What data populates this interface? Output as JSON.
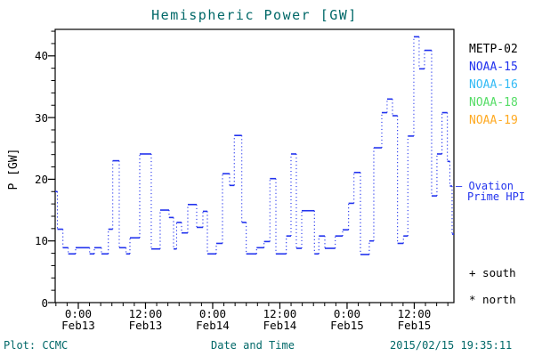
{
  "title": "Hemispheric Power [GW]",
  "colors": {
    "teal": "#006868",
    "blue": "#2233ee",
    "axis": "#000000",
    "background": "#ffffff"
  },
  "legend": {
    "satellites": [
      {
        "label": "METP-02",
        "color": "#000000"
      },
      {
        "label": "NOAA-15",
        "color": "#2233ee"
      },
      {
        "label": "NOAA-16",
        "color": "#33bbf5"
      },
      {
        "label": "NOAA-18",
        "color": "#55dd66"
      },
      {
        "label": "NOAA-19",
        "color": "#ffaa22"
      }
    ],
    "ovation_line1": "— Ovation",
    "ovation_line2": "Prime HPI",
    "south": "+ south",
    "north": "* north"
  },
  "footer": {
    "left": "Plot: CCMC",
    "right": "2015/02/15 19:35:11"
  },
  "chart_data": {
    "type": "line",
    "subtype": "step-stair with dotted risers",
    "title": "Hemispheric Power [GW]",
    "xlabel": "Date and Time",
    "ylabel": "P [GW]",
    "ylim": [
      0,
      44.3
    ],
    "y_ticks": [
      0,
      10,
      20,
      30,
      40
    ],
    "y_minor_step": 2,
    "xlim_hours_from_feb13_0000": [
      -4.13,
      67.08
    ],
    "x_major_ticks_hours": [
      0,
      12,
      24,
      36,
      48,
      60
    ],
    "x_minor_step_hours": 2,
    "x_tick_labels": [
      {
        "time": "0:00",
        "date": "Feb13"
      },
      {
        "time": "12:00",
        "date": "Feb13"
      },
      {
        "time": "0:00",
        "date": "Feb14"
      },
      {
        "time": "12:00",
        "date": "Feb14"
      },
      {
        "time": "0:00",
        "date": "Feb15"
      },
      {
        "time": "12:00",
        "date": "Feb15"
      }
    ],
    "grid": false,
    "legend_position": "right-outside",
    "series": [
      {
        "name": "Ovation Prime HPI",
        "color": "#2233ee",
        "marker_note": "+ south / * north",
        "steps_t0_t1_gw": [
          [
            -4.13,
            -3.73,
            18.0
          ],
          [
            -3.73,
            -2.75,
            11.9
          ],
          [
            -2.75,
            -1.8,
            8.9
          ],
          [
            -1.8,
            -0.48,
            7.9
          ],
          [
            -0.48,
            2.02,
            8.9
          ],
          [
            2.02,
            2.86,
            7.9
          ],
          [
            2.86,
            4.13,
            8.9
          ],
          [
            4.13,
            5.36,
            7.9
          ],
          [
            5.36,
            6.15,
            11.9
          ],
          [
            6.15,
            7.31,
            23.0
          ],
          [
            7.31,
            8.53,
            8.9
          ],
          [
            8.53,
            9.22,
            7.9
          ],
          [
            9.22,
            10.97,
            10.5
          ],
          [
            10.97,
            13.03,
            24.1
          ],
          [
            13.03,
            14.62,
            8.7
          ],
          [
            14.62,
            16.21,
            15.0
          ],
          [
            16.21,
            17.01,
            13.8
          ],
          [
            17.01,
            17.56,
            8.7
          ],
          [
            17.56,
            18.44,
            13.0
          ],
          [
            18.44,
            19.55,
            11.3
          ],
          [
            19.55,
            21.14,
            15.9
          ],
          [
            21.14,
            22.25,
            12.2
          ],
          [
            22.25,
            23.05,
            14.8
          ],
          [
            23.05,
            24.64,
            7.9
          ],
          [
            24.64,
            25.75,
            9.6
          ],
          [
            25.75,
            27.02,
            20.9
          ],
          [
            27.02,
            27.86,
            19.0
          ],
          [
            27.86,
            29.2,
            27.1
          ],
          [
            29.2,
            29.99,
            13.0
          ],
          [
            29.99,
            31.84,
            7.9
          ],
          [
            31.84,
            33.17,
            8.9
          ],
          [
            33.17,
            34.22,
            9.9
          ],
          [
            34.22,
            35.29,
            20.1
          ],
          [
            35.29,
            37.15,
            7.9
          ],
          [
            37.15,
            37.99,
            10.8
          ],
          [
            37.99,
            38.94,
            24.1
          ],
          [
            38.94,
            39.9,
            8.8
          ],
          [
            39.9,
            42.17,
            14.9
          ],
          [
            42.17,
            42.96,
            7.9
          ],
          [
            42.96,
            44.03,
            10.8
          ],
          [
            44.03,
            45.89,
            8.8
          ],
          [
            45.89,
            47.21,
            10.8
          ],
          [
            47.21,
            48.27,
            11.8
          ],
          [
            48.27,
            49.23,
            16.1
          ],
          [
            49.23,
            50.39,
            21.1
          ],
          [
            50.39,
            51.97,
            7.8
          ],
          [
            51.97,
            52.77,
            10.0
          ],
          [
            52.77,
            54.2,
            25.1
          ],
          [
            54.2,
            55.15,
            30.8
          ],
          [
            55.15,
            56.11,
            33.0
          ],
          [
            56.11,
            57.01,
            30.3
          ],
          [
            57.01,
            58.06,
            9.6
          ],
          [
            58.06,
            58.86,
            10.8
          ],
          [
            58.86,
            59.92,
            27.0
          ],
          [
            59.92,
            60.87,
            43.1
          ],
          [
            60.87,
            61.83,
            37.9
          ],
          [
            61.83,
            63.1,
            40.9
          ],
          [
            63.1,
            64.05,
            17.3
          ],
          [
            64.05,
            64.96,
            24.1
          ],
          [
            64.96,
            65.91,
            30.8
          ],
          [
            65.91,
            66.36,
            22.9
          ],
          [
            66.36,
            66.76,
            18.9
          ],
          [
            66.76,
            67.08,
            11.1
          ]
        ]
      }
    ]
  }
}
